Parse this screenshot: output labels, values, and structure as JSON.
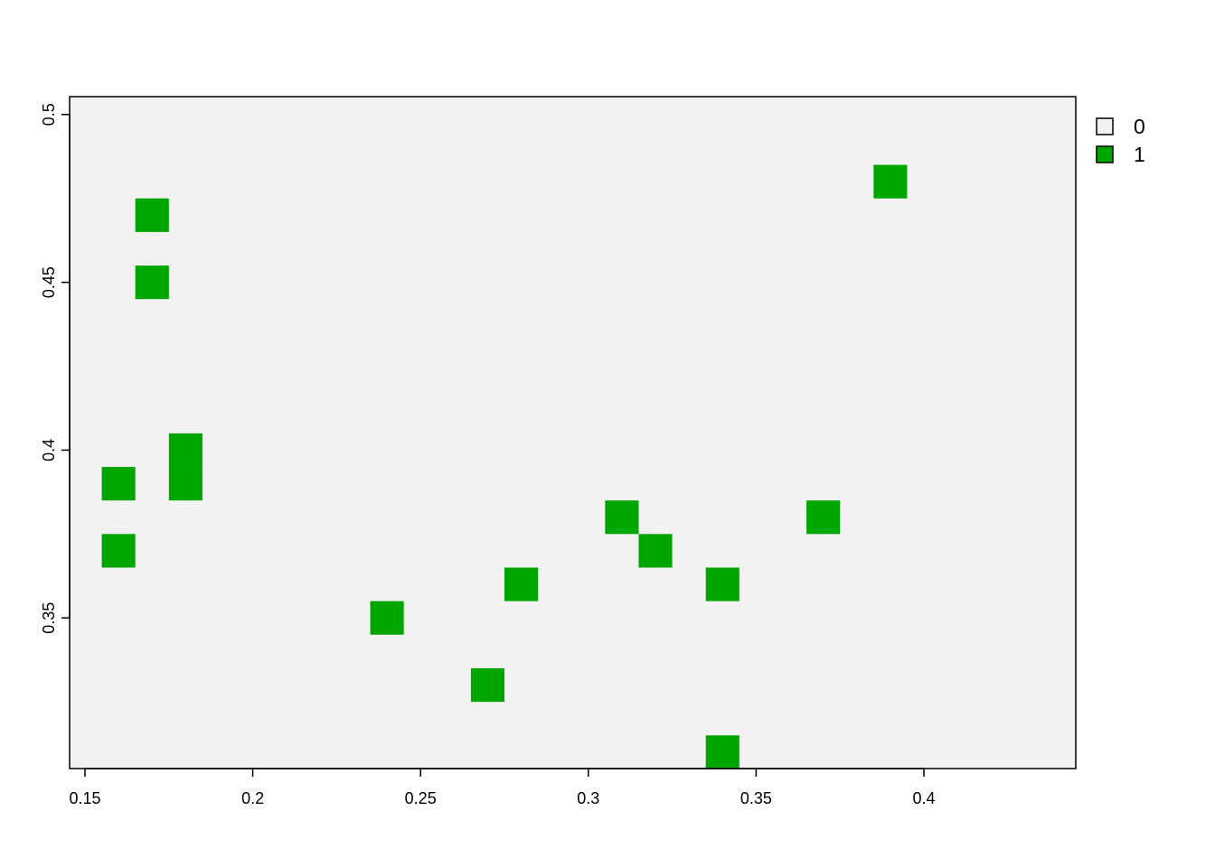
{
  "chart_data": {
    "type": "heatmap",
    "title": "",
    "xlabel": "",
    "ylabel": "",
    "xlim": [
      0.15,
      0.45
    ],
    "ylim": [
      0.305,
      0.505
    ],
    "cell_size": 0.01,
    "x_ticks": [
      0.15,
      0.2,
      0.25,
      0.3,
      0.35,
      0.4
    ],
    "x_tick_labels": [
      "0.15",
      "0.2",
      "0.25",
      "0.3",
      "0.35",
      "0.4"
    ],
    "y_ticks": [
      0.35,
      0.4,
      0.45,
      0.5
    ],
    "y_tick_labels": [
      "0.35",
      "0.4",
      "0.45",
      "0.5"
    ],
    "background_value": 0,
    "cells": [
      {
        "x": 0.39,
        "y": 0.48,
        "value": 1
      },
      {
        "x": 0.17,
        "y": 0.47,
        "value": 1
      },
      {
        "x": 0.17,
        "y": 0.45,
        "value": 1
      },
      {
        "x": 0.18,
        "y": 0.4,
        "value": 1
      },
      {
        "x": 0.18,
        "y": 0.39,
        "value": 1
      },
      {
        "x": 0.16,
        "y": 0.39,
        "value": 1
      },
      {
        "x": 0.16,
        "y": 0.37,
        "value": 1
      },
      {
        "x": 0.31,
        "y": 0.38,
        "value": 1
      },
      {
        "x": 0.37,
        "y": 0.38,
        "value": 1
      },
      {
        "x": 0.32,
        "y": 0.37,
        "value": 1
      },
      {
        "x": 0.28,
        "y": 0.36,
        "value": 1
      },
      {
        "x": 0.34,
        "y": 0.36,
        "value": 1
      },
      {
        "x": 0.24,
        "y": 0.35,
        "value": 1
      },
      {
        "x": 0.27,
        "y": 0.33,
        "value": 1
      },
      {
        "x": 0.34,
        "y": 0.31,
        "value": 1
      }
    ],
    "legend": {
      "position": "right",
      "entries": [
        {
          "label": "0",
          "color": "#f2f2f2"
        },
        {
          "label": "1",
          "color": "#00a600"
        }
      ]
    },
    "colors": {
      "panel_background": "#f2f2f2",
      "value_1": "#00a600",
      "axis": "#000000"
    },
    "grid": false
  }
}
